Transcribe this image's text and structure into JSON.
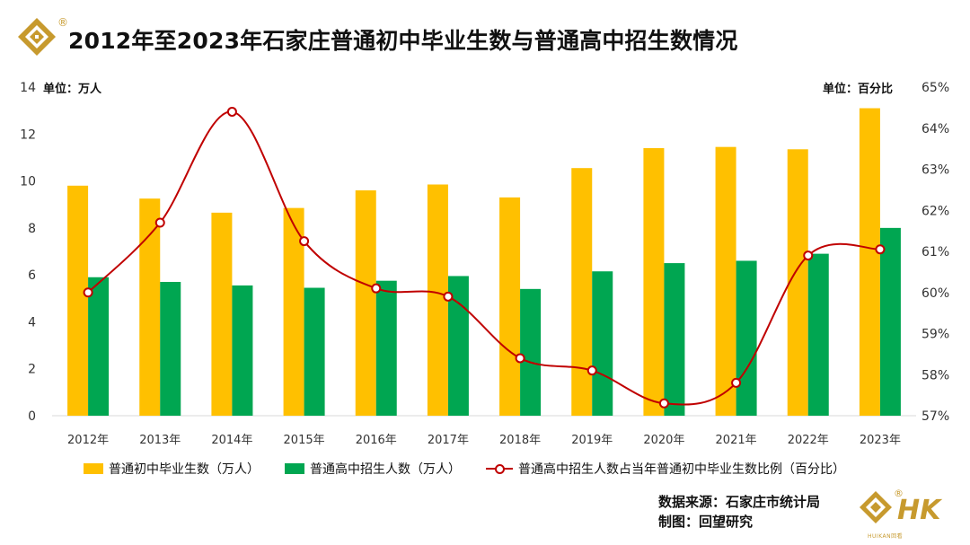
{
  "title": "2012年至2023年石家庄普通初中毕业生数与普通高中招生数情况",
  "unit_left": "单位：万人",
  "unit_right": "单位：百分比",
  "source_line": "数据来源：石家庄市统计局",
  "made_by_line": "制图：回望研究",
  "brand": {
    "logo_text": "HK",
    "small_text": "HUIKAN回看",
    "reg_mark": "®"
  },
  "colors": {
    "yellow": "#FFC000",
    "green": "#00A651",
    "line": "#C00000",
    "logo": "#C79A2E"
  },
  "legend": [
    "普通初中毕业生数（万人）",
    "普通高中招生人数（万人）",
    "普通高中招生人数占当年普通初中毕业生数比例（百分比）"
  ],
  "chart_data": {
    "type": "bar",
    "title": "2012年至2023年石家庄普通初中毕业生数与普通高中招生数情况",
    "categories": [
      "2012年",
      "2013年",
      "2014年",
      "2015年",
      "2016年",
      "2017年",
      "2018年",
      "2019年",
      "2020年",
      "2021年",
      "2022年",
      "2023年"
    ],
    "series": [
      {
        "name": "普通初中毕业生数（万人）",
        "type": "bar",
        "axis": "left",
        "values": [
          9.8,
          9.25,
          8.65,
          8.85,
          9.6,
          9.85,
          9.3,
          10.55,
          11.4,
          11.45,
          11.35,
          13.1
        ]
      },
      {
        "name": "普通高中招生人数（万人）",
        "type": "bar",
        "axis": "left",
        "values": [
          5.9,
          5.7,
          5.55,
          5.45,
          5.75,
          5.95,
          5.4,
          6.15,
          6.5,
          6.6,
          6.9,
          8.0
        ]
      },
      {
        "name": "普通高中招生人数占当年普通初中毕业生数比例（百分比）",
        "type": "line",
        "axis": "right",
        "values": [
          60.0,
          61.7,
          64.4,
          61.25,
          60.1,
          59.9,
          58.4,
          58.1,
          57.3,
          57.8,
          60.9,
          61.05
        ]
      }
    ],
    "left_axis": {
      "ylim": [
        0,
        14
      ],
      "ticks": [
        "0",
        "2",
        "4",
        "6",
        "8",
        "10",
        "12",
        "14"
      ]
    },
    "right_axis": {
      "ylim": [
        57,
        65
      ],
      "ticks": [
        "57%",
        "58%",
        "59%",
        "60%",
        "61%",
        "62%",
        "63%",
        "64%",
        "65%"
      ]
    }
  }
}
